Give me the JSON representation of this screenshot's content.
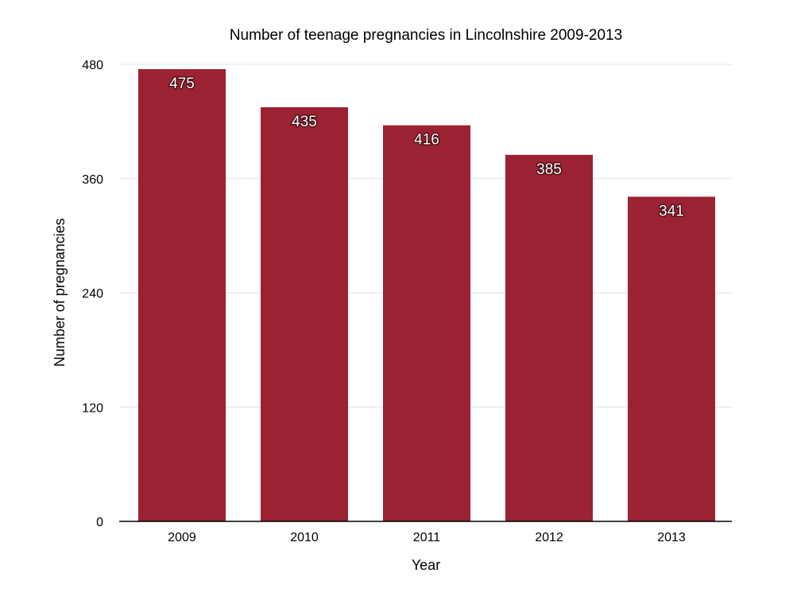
{
  "chart_data": {
    "type": "bar",
    "title": "Number of teenage pregnancies in Lincolnshire 2009-2013",
    "xlabel": "Year",
    "ylabel": "Number of pregnancies",
    "categories": [
      "2009",
      "2010",
      "2011",
      "2012",
      "2013"
    ],
    "values": [
      475,
      435,
      416,
      385,
      341
    ],
    "ylim": [
      0,
      480
    ],
    "yticks": [
      0,
      120,
      240,
      360,
      480
    ],
    "grid": true,
    "legend": "none",
    "colors": {
      "bar": "#9b2232",
      "gridline": "#e3e3e3",
      "axis": "#000000",
      "data_label": "#ffffff"
    }
  }
}
